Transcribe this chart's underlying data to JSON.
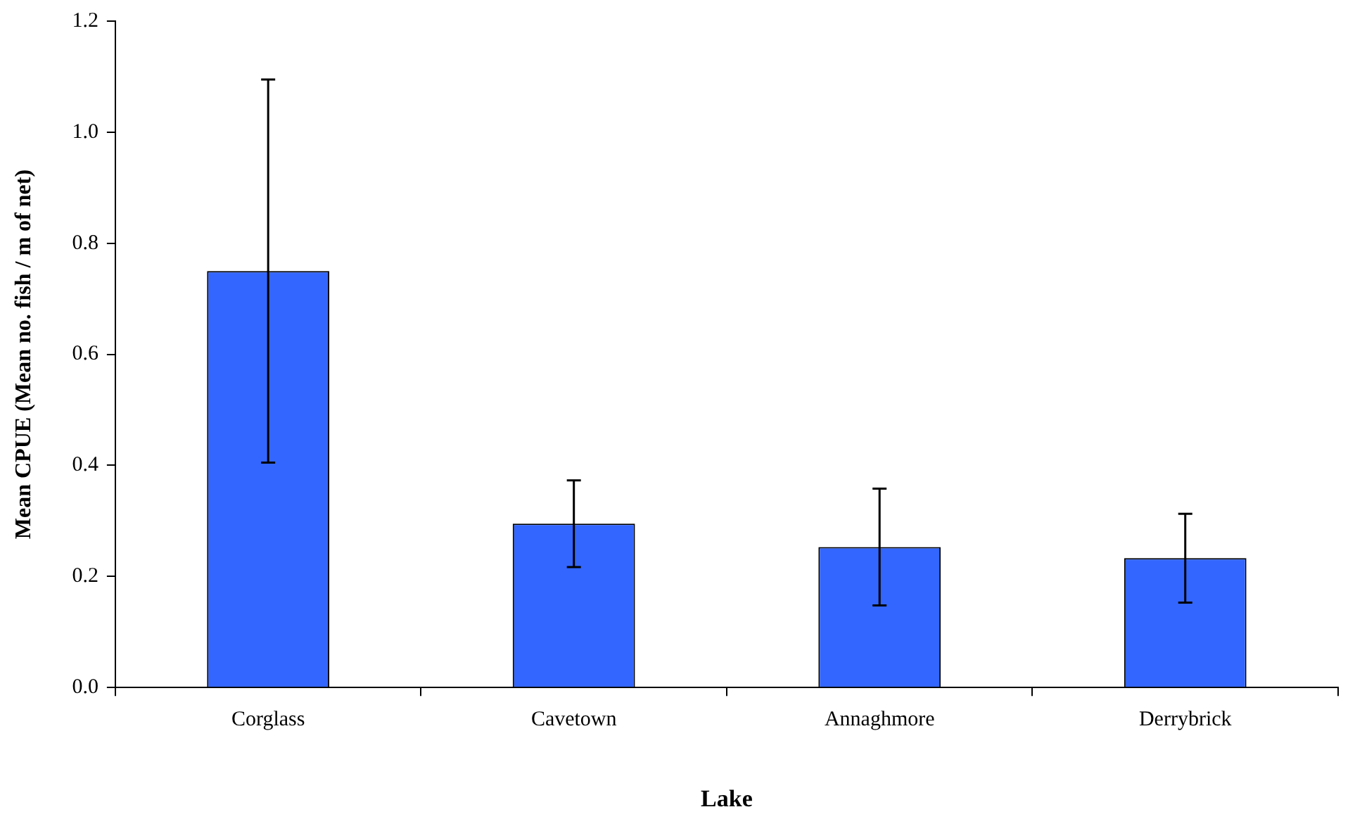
{
  "chart_data": {
    "type": "bar",
    "xlabel": "Lake",
    "ylabel": "Mean CPUE (Mean no. fish / m of net)",
    "categories": [
      "Corglass",
      "Cavetown",
      "Annaghmore",
      "Derrybrick"
    ],
    "values": [
      0.75,
      0.295,
      0.253,
      0.233
    ],
    "errors": [
      0.345,
      0.078,
      0.105,
      0.08
    ],
    "color": "#3366ff",
    "ylim": [
      0,
      1.2
    ],
    "yticks": [
      {
        "value": 0,
        "label": "0.0"
      },
      {
        "value": 0.2,
        "label": "0.2"
      },
      {
        "value": 0.4,
        "label": "0.4"
      },
      {
        "value": 0.6,
        "label": "0.6"
      },
      {
        "value": 0.8,
        "label": "0.8"
      },
      {
        "value": 1.0,
        "label": "1.0"
      },
      {
        "value": 1.2,
        "label": "1.2"
      }
    ],
    "grid": false,
    "legend": false
  }
}
